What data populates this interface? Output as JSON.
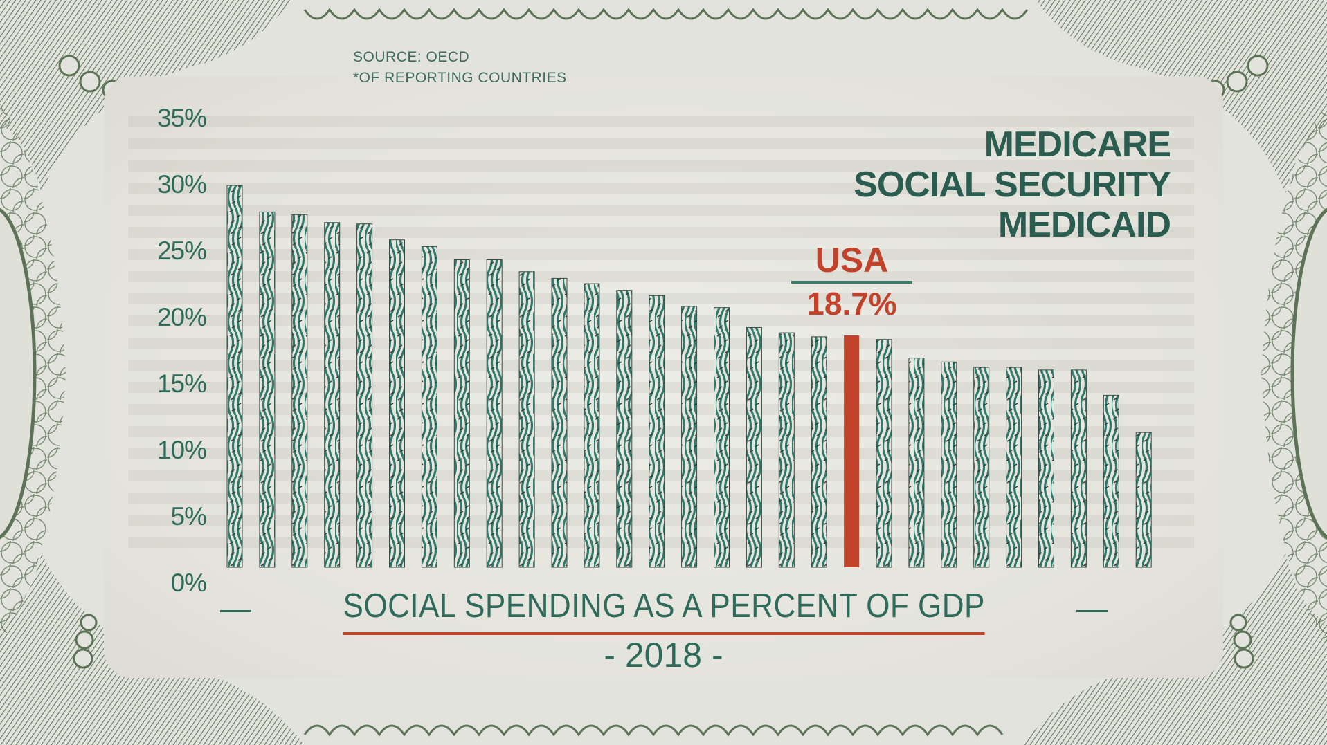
{
  "header": {
    "source": "SOURCE: OECD",
    "footnote": "*OF REPORTING COUNTRIES"
  },
  "legend": {
    "lines": [
      "MEDICARE",
      "SOCIAL SECURITY",
      "MEDICAID"
    ]
  },
  "highlight": {
    "country": "USA",
    "value_label": "18.7%"
  },
  "footer": {
    "title": "SOCIAL SPENDING AS A PERCENT OF GDP",
    "year": "- 2018 -"
  },
  "colors": {
    "bar": "#2f7a6c",
    "bar_dark": "#1f4f45",
    "highlight": "#c2432b",
    "text": "#2f6a5a",
    "engraving": "#5d7358"
  },
  "chart_data": {
    "type": "bar",
    "title": "SOCIAL SPENDING AS A PERCENT OF GDP",
    "subtitle": "2018",
    "xlabel": "",
    "ylabel": "",
    "ylim": [
      0,
      35
    ],
    "yticks": [
      "0%",
      "5%",
      "10%",
      "15%",
      "20%",
      "25%",
      "30%",
      "35%"
    ],
    "ytick_values": [
      0,
      5,
      10,
      15,
      20,
      25,
      30,
      35
    ],
    "grid": true,
    "legend_placement": "top-right",
    "annotations": [
      "USA 18.7%"
    ],
    "categories": [
      "",
      "",
      "",
      "",
      "",
      "",
      "",
      "",
      "",
      "",
      "",
      "",
      "",
      "",
      "",
      "",
      "",
      "",
      "",
      "USA",
      "",
      "",
      "",
      "",
      "",
      "",
      "",
      "",
      ""
    ],
    "values": [
      30.0,
      28.0,
      27.8,
      27.2,
      27.1,
      25.9,
      25.4,
      24.4,
      24.4,
      23.5,
      23.0,
      22.6,
      22.1,
      21.7,
      20.9,
      20.8,
      19.3,
      18.9,
      18.6,
      18.7,
      18.4,
      17.0,
      16.7,
      16.3,
      16.3,
      16.1,
      16.1,
      14.2,
      11.4
    ],
    "highlight_index": 19
  }
}
